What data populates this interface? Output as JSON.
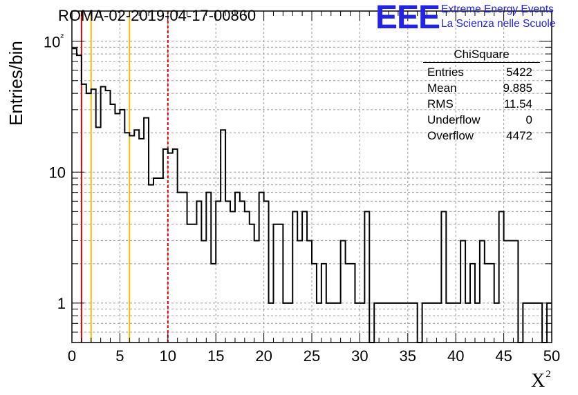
{
  "title": "ROMA-02-2019-04-17-00860",
  "logo": {
    "mark": "EEE",
    "line1": "Extreme Energy Events",
    "line2": "La Scienza nelle Scuole",
    "color": "#2323e6"
  },
  "axes": {
    "ylabel": "Entries/bin",
    "xlabel": "X",
    "xlabel_sup": "2"
  },
  "stats": {
    "title": "ChiSquare",
    "rows": [
      {
        "label": "Entries",
        "value": "5422"
      },
      {
        "label": "Mean",
        "value": "9.885"
      },
      {
        "label": "RMS",
        "value": "11.54"
      },
      {
        "label": "Underflow",
        "value": "0"
      },
      {
        "label": "Overflow",
        "value": "4472"
      }
    ]
  },
  "chart_data": {
    "type": "histogram",
    "title": "ROMA-02-2019-04-17-00860",
    "xlabel": "X²",
    "ylabel": "Entries/bin",
    "xlim": [
      0,
      50
    ],
    "ylim": [
      0.5,
      170
    ],
    "log_y": true,
    "grid": true,
    "bin_width": 0.5,
    "x_ticks": [
      0,
      5,
      10,
      15,
      20,
      25,
      30,
      35,
      40,
      45,
      50
    ],
    "y_ticks": [
      1,
      10,
      100
    ],
    "y_tick_labels": [
      "1",
      "10",
      "10²"
    ],
    "counts": [
      88,
      78,
      47,
      40,
      43,
      22,
      45,
      42,
      33,
      28,
      30,
      20,
      19,
      21,
      18,
      26,
      8,
      9,
      9,
      15,
      14,
      15,
      7,
      7,
      4,
      4,
      6,
      3,
      7,
      2,
      6,
      21,
      6,
      5,
      7,
      6,
      5,
      4,
      3,
      7,
      6,
      1,
      4,
      4,
      1,
      1,
      5,
      3,
      5,
      3,
      2,
      1,
      2,
      1,
      1,
      1,
      3,
      2,
      2,
      1,
      1,
      5,
      0,
      1,
      1,
      1,
      1,
      1,
      1,
      1,
      1,
      1,
      0,
      1,
      1,
      1,
      1,
      5,
      1,
      1,
      1,
      3,
      1,
      2,
      1,
      3,
      2,
      2,
      1,
      5,
      3,
      3,
      3,
      0,
      1,
      1,
      1,
      1,
      0,
      1
    ],
    "reference_lines": [
      {
        "x": 1,
        "color": "#e00000",
        "style": "solid"
      },
      {
        "x": 2,
        "color": "#f0c000",
        "style": "solid"
      },
      {
        "x": 6,
        "color": "#f0c000",
        "style": "solid"
      },
      {
        "x": 10,
        "color": "#e00000",
        "style": "dashed"
      }
    ]
  }
}
